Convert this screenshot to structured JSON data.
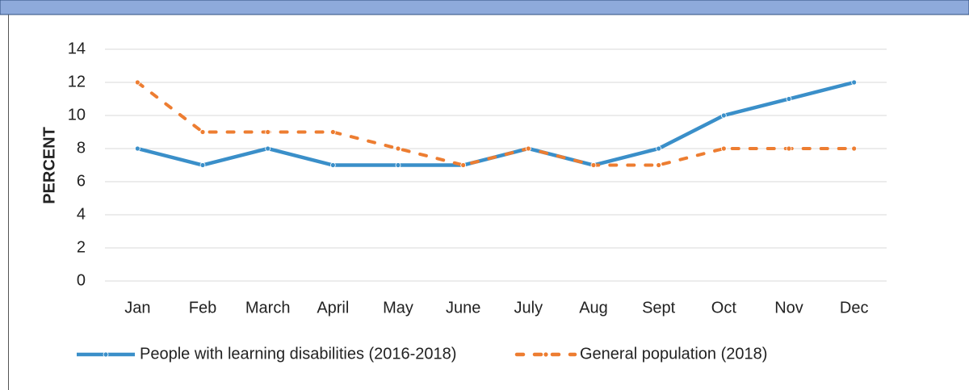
{
  "chart_data": {
    "type": "line",
    "y_label": "PERCENT",
    "categories": [
      "Jan",
      "Feb",
      "March",
      "April",
      "May",
      "June",
      "July",
      "Aug",
      "Sept",
      "Oct",
      "Nov",
      "Dec"
    ],
    "series": [
      {
        "name": "People with learning disabilities (2016-2018)",
        "color": "#3a8fc9",
        "style": "solid",
        "values": [
          8,
          7,
          8,
          7,
          7,
          7,
          8,
          7,
          8,
          10,
          11,
          12
        ]
      },
      {
        "name": "General population (2018)",
        "color": "#ed7d31",
        "style": "dashed",
        "values": [
          12,
          9,
          9,
          9,
          8,
          7,
          8,
          7,
          7,
          8,
          8,
          8
        ]
      }
    ],
    "ylim": [
      0,
      14
    ],
    "yticks": [
      0,
      2,
      4,
      6,
      8,
      10,
      12,
      14
    ],
    "grid": true,
    "legend": "bottom"
  }
}
